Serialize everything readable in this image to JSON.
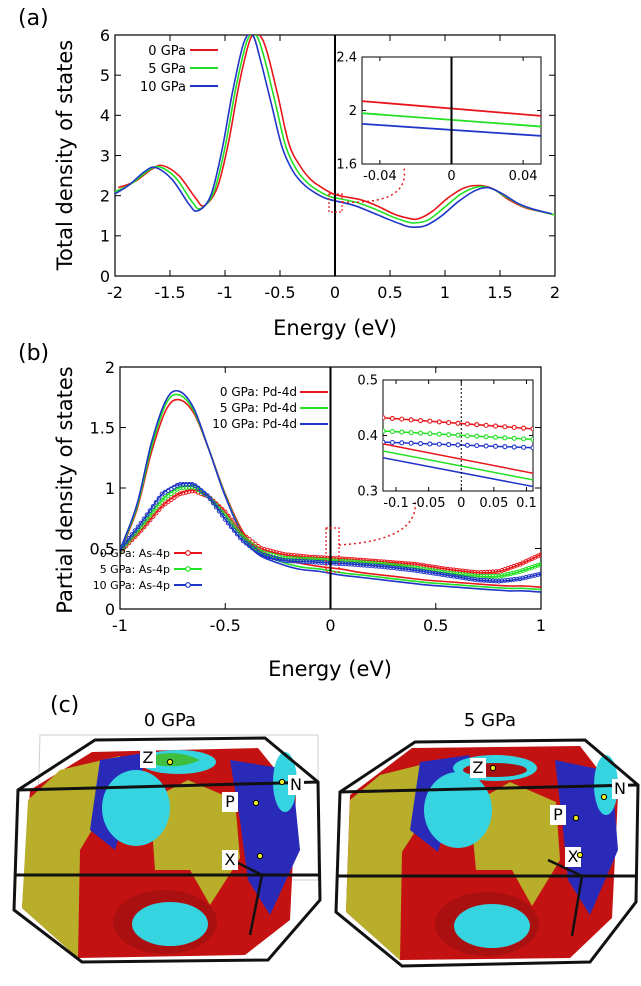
{
  "panels": {
    "a": {
      "label": "(a)"
    },
    "b": {
      "label": "(b)"
    },
    "c": {
      "label": "(c)",
      "left_title": "0 GPa",
      "right_title": "5 GPa",
      "points": [
        "Z",
        "P",
        "N",
        "X"
      ],
      "colors": {
        "red": "#cc1111",
        "blue": "#2222bb",
        "yellow": "#b9ae2a",
        "cyan": "#35d4e0",
        "green": "#3fbf3f"
      }
    }
  },
  "chart_data": [
    {
      "type": "line",
      "id": "a",
      "xlabel": "Energy (eV)",
      "ylabel": "Total density of states",
      "xlim": [
        -2,
        2
      ],
      "ylim": [
        0,
        6
      ],
      "xticks": [
        -2,
        -1.5,
        -1,
        -0.5,
        0,
        0.5,
        1,
        1.5,
        2
      ],
      "xtick_labels": [
        "-2",
        "-1.5",
        "-1",
        "-0.5",
        "0",
        "0.5",
        "1",
        "1.5",
        "2"
      ],
      "yticks": [
        0,
        1,
        2,
        3,
        4,
        5,
        6
      ],
      "ytick_labels": [
        "0",
        "1",
        "2",
        "3",
        "4",
        "5",
        "6"
      ],
      "legend": "top-left",
      "series": [
        {
          "name": "0 GPa",
          "color": "#e8161b",
          "shift": 0.03,
          "x": [
            -2,
            -1.85,
            -1.7,
            -1.6,
            -1.45,
            -1.3,
            -1.22,
            -1.1,
            -1.0,
            -0.9,
            -0.8,
            -0.72,
            -0.65,
            -0.55,
            -0.45,
            -0.35,
            -0.25,
            -0.15,
            -0.05,
            0.05,
            0.2,
            0.35,
            0.5,
            0.62,
            0.72,
            0.85,
            1.0,
            1.15,
            1.3,
            1.42,
            1.55,
            1.7,
            1.85,
            2.0
          ],
          "y": [
            2.2,
            2.35,
            2.65,
            2.75,
            2.5,
            1.95,
            1.75,
            2.2,
            3.3,
            4.8,
            5.9,
            6.0,
            5.6,
            4.5,
            3.3,
            2.75,
            2.4,
            2.2,
            2.05,
            1.98,
            1.9,
            1.75,
            1.55,
            1.45,
            1.42,
            1.6,
            1.95,
            2.2,
            2.25,
            2.15,
            1.9,
            1.7,
            1.6,
            1.5
          ]
        },
        {
          "name": "5 GPa",
          "color": "#22e022",
          "shift": 0.0,
          "x": [
            -2,
            -1.85,
            -1.7,
            -1.6,
            -1.45,
            -1.3,
            -1.22,
            -1.1,
            -1.0,
            -0.9,
            -0.8,
            -0.72,
            -0.65,
            -0.55,
            -0.45,
            -0.35,
            -0.25,
            -0.15,
            -0.05,
            0.05,
            0.2,
            0.35,
            0.5,
            0.62,
            0.72,
            0.85,
            1.0,
            1.15,
            1.3,
            1.42,
            1.55,
            1.7,
            1.85,
            2.0
          ],
          "y": [
            2.1,
            2.3,
            2.62,
            2.72,
            2.45,
            1.85,
            1.68,
            2.1,
            3.2,
            4.7,
            5.85,
            6.0,
            5.5,
            4.4,
            3.25,
            2.65,
            2.32,
            2.12,
            1.98,
            1.92,
            1.83,
            1.68,
            1.5,
            1.38,
            1.32,
            1.4,
            1.72,
            2.05,
            2.22,
            2.18,
            1.98,
            1.75,
            1.62,
            1.52
          ]
        },
        {
          "name": "10 GPa",
          "color": "#2035c8",
          "shift": -0.03,
          "x": [
            -2,
            -1.85,
            -1.7,
            -1.6,
            -1.45,
            -1.3,
            -1.22,
            -1.1,
            -1.0,
            -0.9,
            -0.8,
            -0.72,
            -0.65,
            -0.55,
            -0.45,
            -0.35,
            -0.25,
            -0.15,
            -0.05,
            0.05,
            0.2,
            0.35,
            0.5,
            0.62,
            0.72,
            0.85,
            1.0,
            1.15,
            1.3,
            1.42,
            1.55,
            1.7,
            1.85,
            2.0
          ],
          "y": [
            2.0,
            2.25,
            2.6,
            2.7,
            2.4,
            1.8,
            1.62,
            2.0,
            3.1,
            4.6,
            5.8,
            6.0,
            5.4,
            4.3,
            3.2,
            2.6,
            2.27,
            2.07,
            1.93,
            1.86,
            1.76,
            1.6,
            1.43,
            1.3,
            1.22,
            1.25,
            1.5,
            1.85,
            2.12,
            2.2,
            2.05,
            1.8,
            1.65,
            1.55
          ]
        }
      ],
      "inset": {
        "xlim": [
          -0.05,
          0.05
        ],
        "ylim": [
          1.6,
          2.4
        ],
        "xticks": [
          -0.04,
          0,
          0.04
        ],
        "xtick_labels": [
          "-0.04",
          "0",
          "0.04"
        ],
        "yticks": [
          1.6,
          2,
          2.4
        ],
        "ytick_labels": [
          "1.6",
          "2",
          "2.4"
        ],
        "series": [
          {
            "color": "#e8161b",
            "x": [
              -0.05,
              0.05
            ],
            "y": [
              2.07,
              1.96
            ]
          },
          {
            "color": "#22e022",
            "x": [
              -0.05,
              0.05
            ],
            "y": [
              1.98,
              1.88
            ]
          },
          {
            "color": "#2035c8",
            "x": [
              -0.05,
              0.05
            ],
            "y": [
              1.9,
              1.81
            ]
          }
        ]
      }
    },
    {
      "type": "line",
      "id": "b",
      "xlabel": "Energy (eV)",
      "ylabel": "Partial density of states",
      "xlim": [
        -1,
        1
      ],
      "ylim": [
        0,
        2
      ],
      "xticks": [
        -1,
        -0.5,
        0,
        0.5,
        1
      ],
      "xtick_labels": [
        "-1",
        "-0.5",
        "0",
        "0.5",
        "1"
      ],
      "yticks": [
        0,
        0.5,
        1,
        1.5,
        2
      ],
      "ytick_labels": [
        "0",
        "0.5",
        "1",
        "1.5",
        "2"
      ],
      "series": [
        {
          "name": "0 GPa: Pd-4d",
          "color": "#e8161b",
          "marker": false,
          "x": [
            -1,
            -0.92,
            -0.85,
            -0.78,
            -0.72,
            -0.65,
            -0.58,
            -0.5,
            -0.42,
            -0.35,
            -0.25,
            -0.15,
            -0.05,
            0.05,
            0.15,
            0.3,
            0.45,
            0.6,
            0.75,
            0.85,
            0.92,
            1.0
          ],
          "y": [
            0.47,
            0.82,
            1.3,
            1.65,
            1.73,
            1.62,
            1.33,
            0.95,
            0.65,
            0.5,
            0.42,
            0.38,
            0.35,
            0.33,
            0.3,
            0.27,
            0.24,
            0.22,
            0.2,
            0.19,
            0.19,
            0.18
          ]
        },
        {
          "name": "5 GPa: Pd-4d",
          "color": "#22e022",
          "marker": false,
          "x": [
            -1,
            -0.92,
            -0.85,
            -0.78,
            -0.72,
            -0.65,
            -0.58,
            -0.5,
            -0.42,
            -0.35,
            -0.25,
            -0.15,
            -0.05,
            0.05,
            0.15,
            0.3,
            0.45,
            0.6,
            0.75,
            0.85,
            0.92,
            1.0
          ],
          "y": [
            0.48,
            0.84,
            1.34,
            1.7,
            1.77,
            1.64,
            1.33,
            0.94,
            0.63,
            0.48,
            0.4,
            0.35,
            0.33,
            0.3,
            0.28,
            0.25,
            0.22,
            0.2,
            0.18,
            0.17,
            0.17,
            0.16
          ]
        },
        {
          "name": "10 GPa: Pd-4d",
          "color": "#2035c8",
          "marker": false,
          "x": [
            -1,
            -0.92,
            -0.85,
            -0.78,
            -0.72,
            -0.65,
            -0.58,
            -0.5,
            -0.42,
            -0.35,
            -0.25,
            -0.15,
            -0.05,
            0.05,
            0.15,
            0.3,
            0.45,
            0.6,
            0.75,
            0.85,
            0.92,
            1.0
          ],
          "y": [
            0.49,
            0.86,
            1.38,
            1.73,
            1.8,
            1.66,
            1.33,
            0.93,
            0.62,
            0.46,
            0.38,
            0.33,
            0.31,
            0.28,
            0.26,
            0.23,
            0.2,
            0.18,
            0.16,
            0.15,
            0.15,
            0.14
          ]
        },
        {
          "name": "0 GPa: As-4p",
          "color": "#e8161b",
          "marker": true,
          "x": [
            -1,
            -0.9,
            -0.8,
            -0.72,
            -0.65,
            -0.58,
            -0.5,
            -0.42,
            -0.33,
            -0.22,
            -0.1,
            0.0,
            0.1,
            0.25,
            0.4,
            0.55,
            0.7,
            0.8,
            0.9,
            1.0
          ],
          "y": [
            0.47,
            0.65,
            0.85,
            0.95,
            0.98,
            0.93,
            0.8,
            0.62,
            0.5,
            0.45,
            0.43,
            0.42,
            0.41,
            0.39,
            0.37,
            0.33,
            0.3,
            0.31,
            0.37,
            0.45
          ]
        },
        {
          "name": "5 GPa: As-4p",
          "color": "#22e022",
          "marker": true,
          "x": [
            -1,
            -0.9,
            -0.8,
            -0.72,
            -0.65,
            -0.58,
            -0.5,
            -0.42,
            -0.33,
            -0.22,
            -0.1,
            0.0,
            0.1,
            0.25,
            0.4,
            0.55,
            0.7,
            0.8,
            0.9,
            1.0
          ],
          "y": [
            0.48,
            0.68,
            0.9,
            1.0,
            1.01,
            0.93,
            0.77,
            0.6,
            0.47,
            0.42,
            0.41,
            0.4,
            0.39,
            0.37,
            0.34,
            0.3,
            0.27,
            0.27,
            0.31,
            0.37
          ]
        },
        {
          "name": "10 GPa: As-4p",
          "color": "#2035c8",
          "marker": true,
          "x": [
            -1,
            -0.9,
            -0.8,
            -0.72,
            -0.65,
            -0.58,
            -0.5,
            -0.42,
            -0.33,
            -0.22,
            -0.1,
            0.0,
            0.1,
            0.25,
            0.4,
            0.55,
            0.7,
            0.8,
            0.9,
            1.0
          ],
          "y": [
            0.49,
            0.71,
            0.95,
            1.03,
            1.03,
            0.93,
            0.74,
            0.57,
            0.45,
            0.4,
            0.39,
            0.38,
            0.37,
            0.35,
            0.32,
            0.28,
            0.24,
            0.23,
            0.25,
            0.29
          ]
        }
      ],
      "legend_top": "top-right",
      "legend_bottom": "bottom-left",
      "inset": {
        "xlim": [
          -0.12,
          0.11
        ],
        "ylim": [
          0.3,
          0.5
        ],
        "xticks": [
          -0.1,
          -0.05,
          0,
          0.05,
          0.1
        ],
        "xtick_labels": [
          "-0.1",
          "-0.05",
          "0",
          "0.05",
          "0.1"
        ],
        "yticks": [
          0.3,
          0.4,
          0.5
        ],
        "ytick_labels": [
          "0.3",
          "0.4",
          "0.5"
        ],
        "series": [
          {
            "color": "#e8161b",
            "marker": true,
            "x": [
              -0.12,
              0.11
            ],
            "y": [
              0.432,
              0.412
            ]
          },
          {
            "color": "#22e022",
            "marker": true,
            "x": [
              -0.12,
              0.11
            ],
            "y": [
              0.408,
              0.393
            ]
          },
          {
            "color": "#2035c8",
            "marker": true,
            "x": [
              -0.12,
              0.11
            ],
            "y": [
              0.388,
              0.378
            ]
          },
          {
            "color": "#e8161b",
            "marker": false,
            "x": [
              -0.12,
              0.11
            ],
            "y": [
              0.385,
              0.332
            ]
          },
          {
            "color": "#22e022",
            "marker": false,
            "x": [
              -0.12,
              0.11
            ],
            "y": [
              0.372,
              0.32
            ]
          },
          {
            "color": "#2035c8",
            "marker": false,
            "x": [
              -0.12,
              0.11
            ],
            "y": [
              0.36,
              0.308
            ]
          }
        ]
      }
    }
  ]
}
